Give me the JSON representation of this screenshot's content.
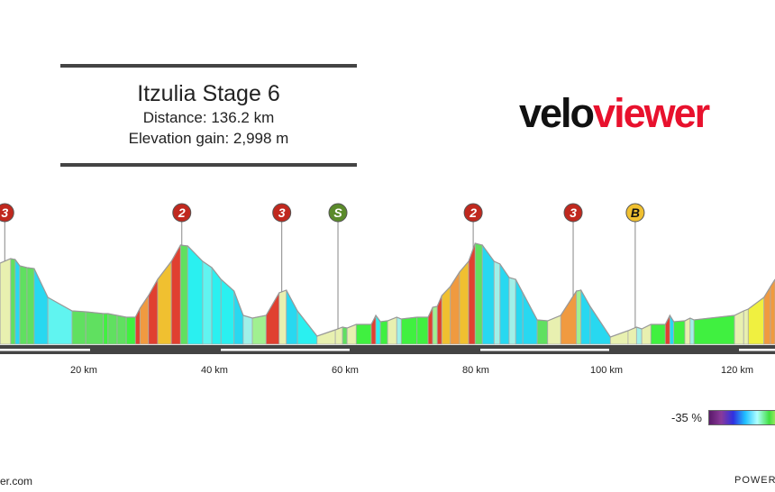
{
  "header": {
    "title": "Itzulia Stage 6",
    "distance": "Distance: 136.2 km",
    "elevation_gain": "Elevation gain: 2,998 m"
  },
  "logo": {
    "part1": "velo",
    "part2": "viewer",
    "color": "#e8112d"
  },
  "profile": {
    "km": [
      7.2,
      8.8,
      9.5,
      10.2,
      11.3,
      12.4,
      14.5,
      18.2,
      20.3,
      23.0,
      23.7,
      25.1,
      26.5,
      27.9,
      28.6,
      29.9,
      31.3,
      33.4,
      34.8,
      35.9,
      38.2,
      39.6,
      41.0,
      43.0,
      44.4,
      45.8,
      47.9,
      49.9,
      51.0,
      52.7,
      55.7,
      58.5,
      59.6,
      60.3,
      61.7,
      64.0,
      64.7,
      65.4,
      66.5,
      67.9,
      68.6,
      71.0,
      72.7,
      73.4,
      74.1,
      74.8,
      76.1,
      77.5,
      78.9,
      79.9,
      81.0,
      82.8,
      83.7,
      85.1,
      86.1,
      87.2,
      89.4,
      91.0,
      93.0,
      95.4,
      96.1,
      97.5,
      100.6,
      103.3,
      104.6,
      105.4,
      106.8,
      109.0,
      109.7,
      110.3,
      112.0,
      112.8,
      113.4,
      119.6,
      121.0,
      121.7,
      124.1,
      125.1,
      125.8
    ],
    "elevation_m": [
      720,
      760,
      752,
      696,
      680,
      672,
      416,
      296,
      288,
      272,
      272,
      256,
      240,
      240,
      320,
      432,
      576,
      736,
      880,
      872,
      736,
      680,
      576,
      472,
      256,
      232,
      256,
      456,
      480,
      296,
      72,
      128,
      152,
      144,
      176,
      176,
      256,
      200,
      208,
      240,
      224,
      240,
      240,
      328,
      336,
      432,
      512,
      640,
      736,
      896,
      880,
      736,
      712,
      592,
      576,
      456,
      216,
      208,
      256,
      472,
      480,
      336,
      64,
      120,
      152,
      136,
      176,
      176,
      256,
      200,
      208,
      232,
      216,
      256,
      296,
      312,
      416,
      512,
      576
    ]
  },
  "markers": [
    {
      "km": 7.9,
      "label": "3",
      "color": "#c0281e"
    },
    {
      "km": 35.0,
      "label": "2",
      "color": "#c0281e"
    },
    {
      "km": 50.3,
      "label": "3",
      "color": "#c0281e"
    },
    {
      "km": 58.9,
      "label": "S",
      "color": "#5a8a2a"
    },
    {
      "km": 79.6,
      "label": "2",
      "color": "#c0281e"
    },
    {
      "km": 94.9,
      "label": "3",
      "color": "#c0281e"
    },
    {
      "km": 104.4,
      "label": "B",
      "color": "#f0c030"
    }
  ],
  "axis": {
    "ticks": [
      {
        "km": 20,
        "label": "20 km"
      },
      {
        "km": 40,
        "label": "40 km"
      },
      {
        "km": 60,
        "label": "60 km"
      },
      {
        "km": 80,
        "label": "80 km"
      },
      {
        "km": 100,
        "label": "100 km"
      },
      {
        "km": 120,
        "label": "120 km"
      }
    ]
  },
  "legend": {
    "min_label": "-35 %"
  },
  "footer": {
    "left": "er.com",
    "right": "POWERE"
  }
}
